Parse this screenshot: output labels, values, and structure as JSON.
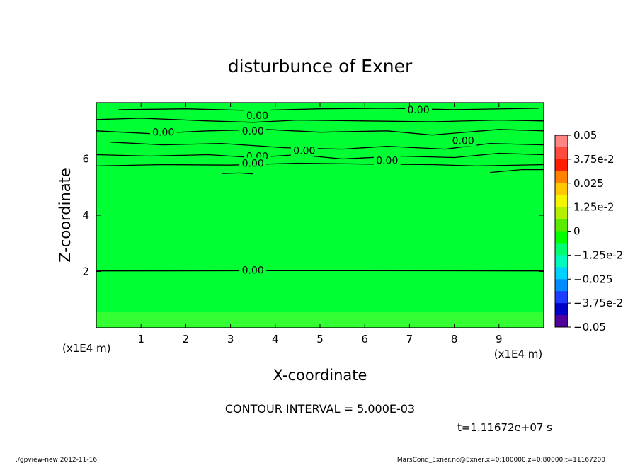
{
  "chart_data": {
    "type": "heatmap",
    "title": "disturbunce of Exner",
    "xlabel": "X-coordinate",
    "ylabel": "Z-coordinate",
    "x_unit_label": "(x1E4 m)",
    "y_unit_label": "(x1E4 m)",
    "xlim": [
      0,
      10
    ],
    "ylim": [
      0,
      8
    ],
    "x_ticks": [
      1,
      2,
      3,
      4,
      5,
      6,
      7,
      8,
      9
    ],
    "y_ticks": [
      2,
      4,
      6
    ],
    "field_value": 0,
    "near_surface_value": 0.003,
    "contour_interval_text": "CONTOUR INTERVAL = 5.000E-03",
    "contour_label_text": "0.00",
    "contour_labels": [
      {
        "x": 3.6,
        "z": 7.55
      },
      {
        "x": 7.2,
        "z": 7.75
      },
      {
        "x": 1.5,
        "z": 6.95
      },
      {
        "x": 3.5,
        "z": 7.0
      },
      {
        "x": 4.65,
        "z": 6.3
      },
      {
        "x": 8.2,
        "z": 6.65
      },
      {
        "x": 3.6,
        "z": 6.1
      },
      {
        "x": 3.5,
        "z": 5.85
      },
      {
        "x": 6.5,
        "z": 5.95
      },
      {
        "x": 3.5,
        "z": 2.05
      }
    ],
    "contours": [
      {
        "points": [
          [
            0.5,
            7.75
          ],
          [
            2,
            7.78
          ],
          [
            3.5,
            7.72
          ],
          [
            5,
            7.78
          ],
          [
            6.5,
            7.8
          ],
          [
            8,
            7.75
          ],
          [
            9.9,
            7.8
          ]
        ]
      },
      {
        "points": [
          [
            0,
            7.4
          ],
          [
            1,
            7.45
          ],
          [
            2.5,
            7.35
          ],
          [
            3.5,
            7.3
          ],
          [
            4.5,
            7.38
          ],
          [
            6,
            7.35
          ],
          [
            7.5,
            7.32
          ],
          [
            9,
            7.38
          ],
          [
            10,
            7.35
          ]
        ]
      },
      {
        "points": [
          [
            0,
            7.0
          ],
          [
            1.2,
            6.9
          ],
          [
            2.5,
            7.0
          ],
          [
            3.8,
            7.05
          ],
          [
            5,
            6.95
          ],
          [
            6.5,
            7.0
          ],
          [
            7.5,
            6.85
          ],
          [
            9,
            7.05
          ],
          [
            10,
            7.0
          ]
        ]
      },
      {
        "points": [
          [
            0.3,
            6.6
          ],
          [
            1.5,
            6.5
          ],
          [
            2.8,
            6.55
          ],
          [
            4.2,
            6.4
          ],
          [
            5.5,
            6.35
          ],
          [
            6.5,
            6.45
          ],
          [
            7.8,
            6.35
          ],
          [
            8.8,
            6.55
          ],
          [
            10,
            6.5
          ]
        ]
      },
      {
        "points": [
          [
            0,
            6.15
          ],
          [
            1.2,
            6.1
          ],
          [
            2.5,
            6.15
          ],
          [
            3.5,
            6.05
          ],
          [
            4.5,
            6.15
          ],
          [
            5.5,
            6.0
          ],
          [
            6.8,
            6.1
          ],
          [
            8,
            6.05
          ],
          [
            9,
            6.2
          ],
          [
            10,
            6.15
          ]
        ]
      },
      {
        "points": [
          [
            0,
            5.75
          ],
          [
            1.5,
            5.8
          ],
          [
            3,
            5.78
          ],
          [
            4.5,
            5.85
          ],
          [
            6,
            5.82
          ],
          [
            7.5,
            5.8
          ],
          [
            8.5,
            5.75
          ],
          [
            10,
            5.8
          ]
        ]
      },
      {
        "points": [
          [
            2.8,
            5.48
          ],
          [
            3.2,
            5.5
          ],
          [
            3.5,
            5.47
          ]
        ]
      },
      {
        "points": [
          [
            8.8,
            5.52
          ],
          [
            9.5,
            5.62
          ],
          [
            10,
            5.62
          ]
        ]
      },
      {
        "points": [
          [
            0,
            2.02
          ],
          [
            5,
            2.03
          ],
          [
            10,
            2.02
          ]
        ]
      }
    ],
    "colorbar": {
      "labels": [
        "0.05",
        "3.75e-2",
        "0.025",
        "1.25e-2",
        "0",
        "−1.25e-2",
        "−0.025",
        "−3.75e-2",
        "−0.05"
      ],
      "levels": [
        0.05,
        0.04375,
        0.0375,
        0.03125,
        0.025,
        0.01875,
        0.0125,
        0.00625,
        0.0,
        -0.00625,
        -0.0125,
        -0.01875,
        -0.025,
        -0.03125,
        -0.0375,
        -0.04375,
        -0.05
      ],
      "colors": [
        "#ff8585",
        "#ff4a3c",
        "#ff1f00",
        "#ff8200",
        "#ffc800",
        "#f5f500",
        "#b4f000",
        "#5aeb00",
        "#00ff00",
        "#00ff6e",
        "#00fabe",
        "#00d2ff",
        "#008cff",
        "#1e3cff",
        "#0000c8",
        "#50009b"
      ]
    },
    "field_colors": {
      "main": "#00ff33",
      "near_surface": "#33ff33"
    }
  },
  "annotations": {
    "time_text": "t=1.11672e+07 s",
    "footer_left": "./gpview-new   2012-11-16",
    "footer_right": "MarsCond_Exner.nc@Exner,x=0:100000,z=0:80000,t=11167200"
  }
}
